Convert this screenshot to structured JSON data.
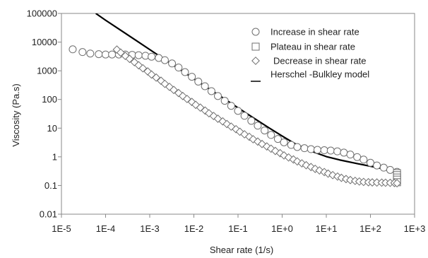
{
  "chart_data": {
    "type": "scatter",
    "title": "",
    "xlabel": "Shear rate (1/s)",
    "ylabel": "Viscosity (Pa.s)",
    "x_scale": "log",
    "y_scale": "log",
    "xlim": [
      1e-05,
      1000
    ],
    "ylim": [
      0.01,
      100000
    ],
    "x_ticks": [
      {
        "value": 1e-05,
        "label": "1E-5"
      },
      {
        "value": 0.0001,
        "label": "1E-4"
      },
      {
        "value": 0.001,
        "label": "1E-3"
      },
      {
        "value": 0.01,
        "label": "1E-2"
      },
      {
        "value": 0.1,
        "label": "1E-1"
      },
      {
        "value": 1,
        "label": "1E+0"
      },
      {
        "value": 10,
        "label": "1E+1"
      },
      {
        "value": 100,
        "label": "1E+2"
      },
      {
        "value": 1000,
        "label": "1E+3"
      }
    ],
    "y_ticks": [
      {
        "value": 0.01,
        "label": "0.01"
      },
      {
        "value": 0.1,
        "label": "0.1"
      },
      {
        "value": 1,
        "label": "1"
      },
      {
        "value": 10,
        "label": "10"
      },
      {
        "value": 100,
        "label": "100"
      },
      {
        "value": 1000,
        "label": "1000"
      },
      {
        "value": 10000,
        "label": "10000"
      },
      {
        "value": 100000,
        "label": "100000"
      }
    ],
    "grid": false,
    "legend_position": "top-right",
    "series": [
      {
        "name": "Increase in shear rate",
        "marker": "circle",
        "x": [
          1.8e-05,
          3e-05,
          4.5e-05,
          7e-05,
          0.0001,
          0.00014,
          0.0002,
          0.00028,
          0.0004,
          0.00056,
          0.0008,
          0.0011,
          0.0016,
          0.0022,
          0.0032,
          0.0045,
          0.0063,
          0.009,
          0.0126,
          0.0178,
          0.025,
          0.035,
          0.05,
          0.07,
          0.1,
          0.14,
          0.2,
          0.28,
          0.4,
          0.56,
          0.8,
          1.1,
          1.6,
          2.2,
          3.2,
          4.5,
          6.3,
          9,
          12.6,
          17.8,
          25,
          35,
          50,
          70,
          100,
          140,
          200,
          280,
          400
        ],
        "y": [
          5600,
          4500,
          4000,
          3800,
          3700,
          3700,
          3700,
          3700,
          3600,
          3500,
          3350,
          3100,
          2800,
          2350,
          1800,
          1300,
          900,
          620,
          420,
          290,
          195,
          132,
          90,
          60,
          40,
          27,
          18,
          12.2,
          8.3,
          5.8,
          4.2,
          3.2,
          2.6,
          2.2,
          2,
          1.85,
          1.75,
          1.7,
          1.65,
          1.55,
          1.4,
          1.2,
          0.98,
          0.8,
          0.62,
          0.5,
          0.42,
          0.35,
          0.3
        ]
      },
      {
        "name": "Plateau in shear rate",
        "marker": "square",
        "x": [
          400,
          400,
          400,
          400,
          400
        ],
        "y": [
          0.27,
          0.23,
          0.19,
          0.16,
          0.13
        ]
      },
      {
        "name": "Decrease in shear rate",
        "marker": "diamond",
        "x": [
          0.00018,
          0.00022,
          0.00028,
          0.00035,
          0.00045,
          0.00056,
          0.0007,
          0.0009,
          0.0011,
          0.0014,
          0.0018,
          0.0022,
          0.0028,
          0.0035,
          0.0045,
          0.0056,
          0.007,
          0.009,
          0.011,
          0.014,
          0.018,
          0.022,
          0.028,
          0.035,
          0.045,
          0.056,
          0.07,
          0.09,
          0.11,
          0.14,
          0.18,
          0.22,
          0.28,
          0.35,
          0.45,
          0.56,
          0.7,
          0.9,
          1.1,
          1.4,
          1.8,
          2.2,
          2.8,
          3.5,
          4.5,
          5.6,
          7,
          9,
          11,
          14,
          18,
          22,
          28,
          35,
          45,
          56,
          70,
          90,
          110,
          140,
          180,
          220,
          280,
          350,
          400
        ],
        "y": [
          5500,
          4300,
          3300,
          2600,
          2000,
          1560,
          1220,
          950,
          740,
          580,
          450,
          350,
          275,
          215,
          168,
          132,
          104,
          82,
          65,
          52,
          41,
          33,
          26.5,
          21.3,
          17.2,
          13.9,
          11.3,
          9.2,
          7.5,
          6.1,
          5,
          4.1,
          3.4,
          2.8,
          2.3,
          1.92,
          1.6,
          1.34,
          1.12,
          0.95,
          0.81,
          0.69,
          0.59,
          0.51,
          0.44,
          0.38,
          0.335,
          0.295,
          0.26,
          0.23,
          0.205,
          0.185,
          0.168,
          0.155,
          0.145,
          0.138,
          0.133,
          0.13,
          0.128,
          0.127,
          0.126,
          0.125,
          0.124,
          0.123,
          0.12
        ]
      },
      {
        "name": "Herschel -Bulkley model",
        "marker": "line",
        "x": [
          6e-05,
          0.0001,
          0.0002,
          0.0005,
          0.001,
          0.002,
          0.005,
          0.01,
          0.02,
          0.05,
          0.1,
          0.2,
          0.5,
          1,
          2,
          5,
          10,
          20,
          50,
          100,
          200,
          400
        ],
        "y": [
          100000,
          58000,
          28600,
          11200,
          5500,
          2700,
          1070,
          525,
          260,
          103,
          51,
          25.5,
          10.3,
          5.3,
          2.8,
          1.5,
          1.02,
          0.78,
          0.58,
          0.47,
          0.38,
          0.31
        ]
      }
    ]
  }
}
